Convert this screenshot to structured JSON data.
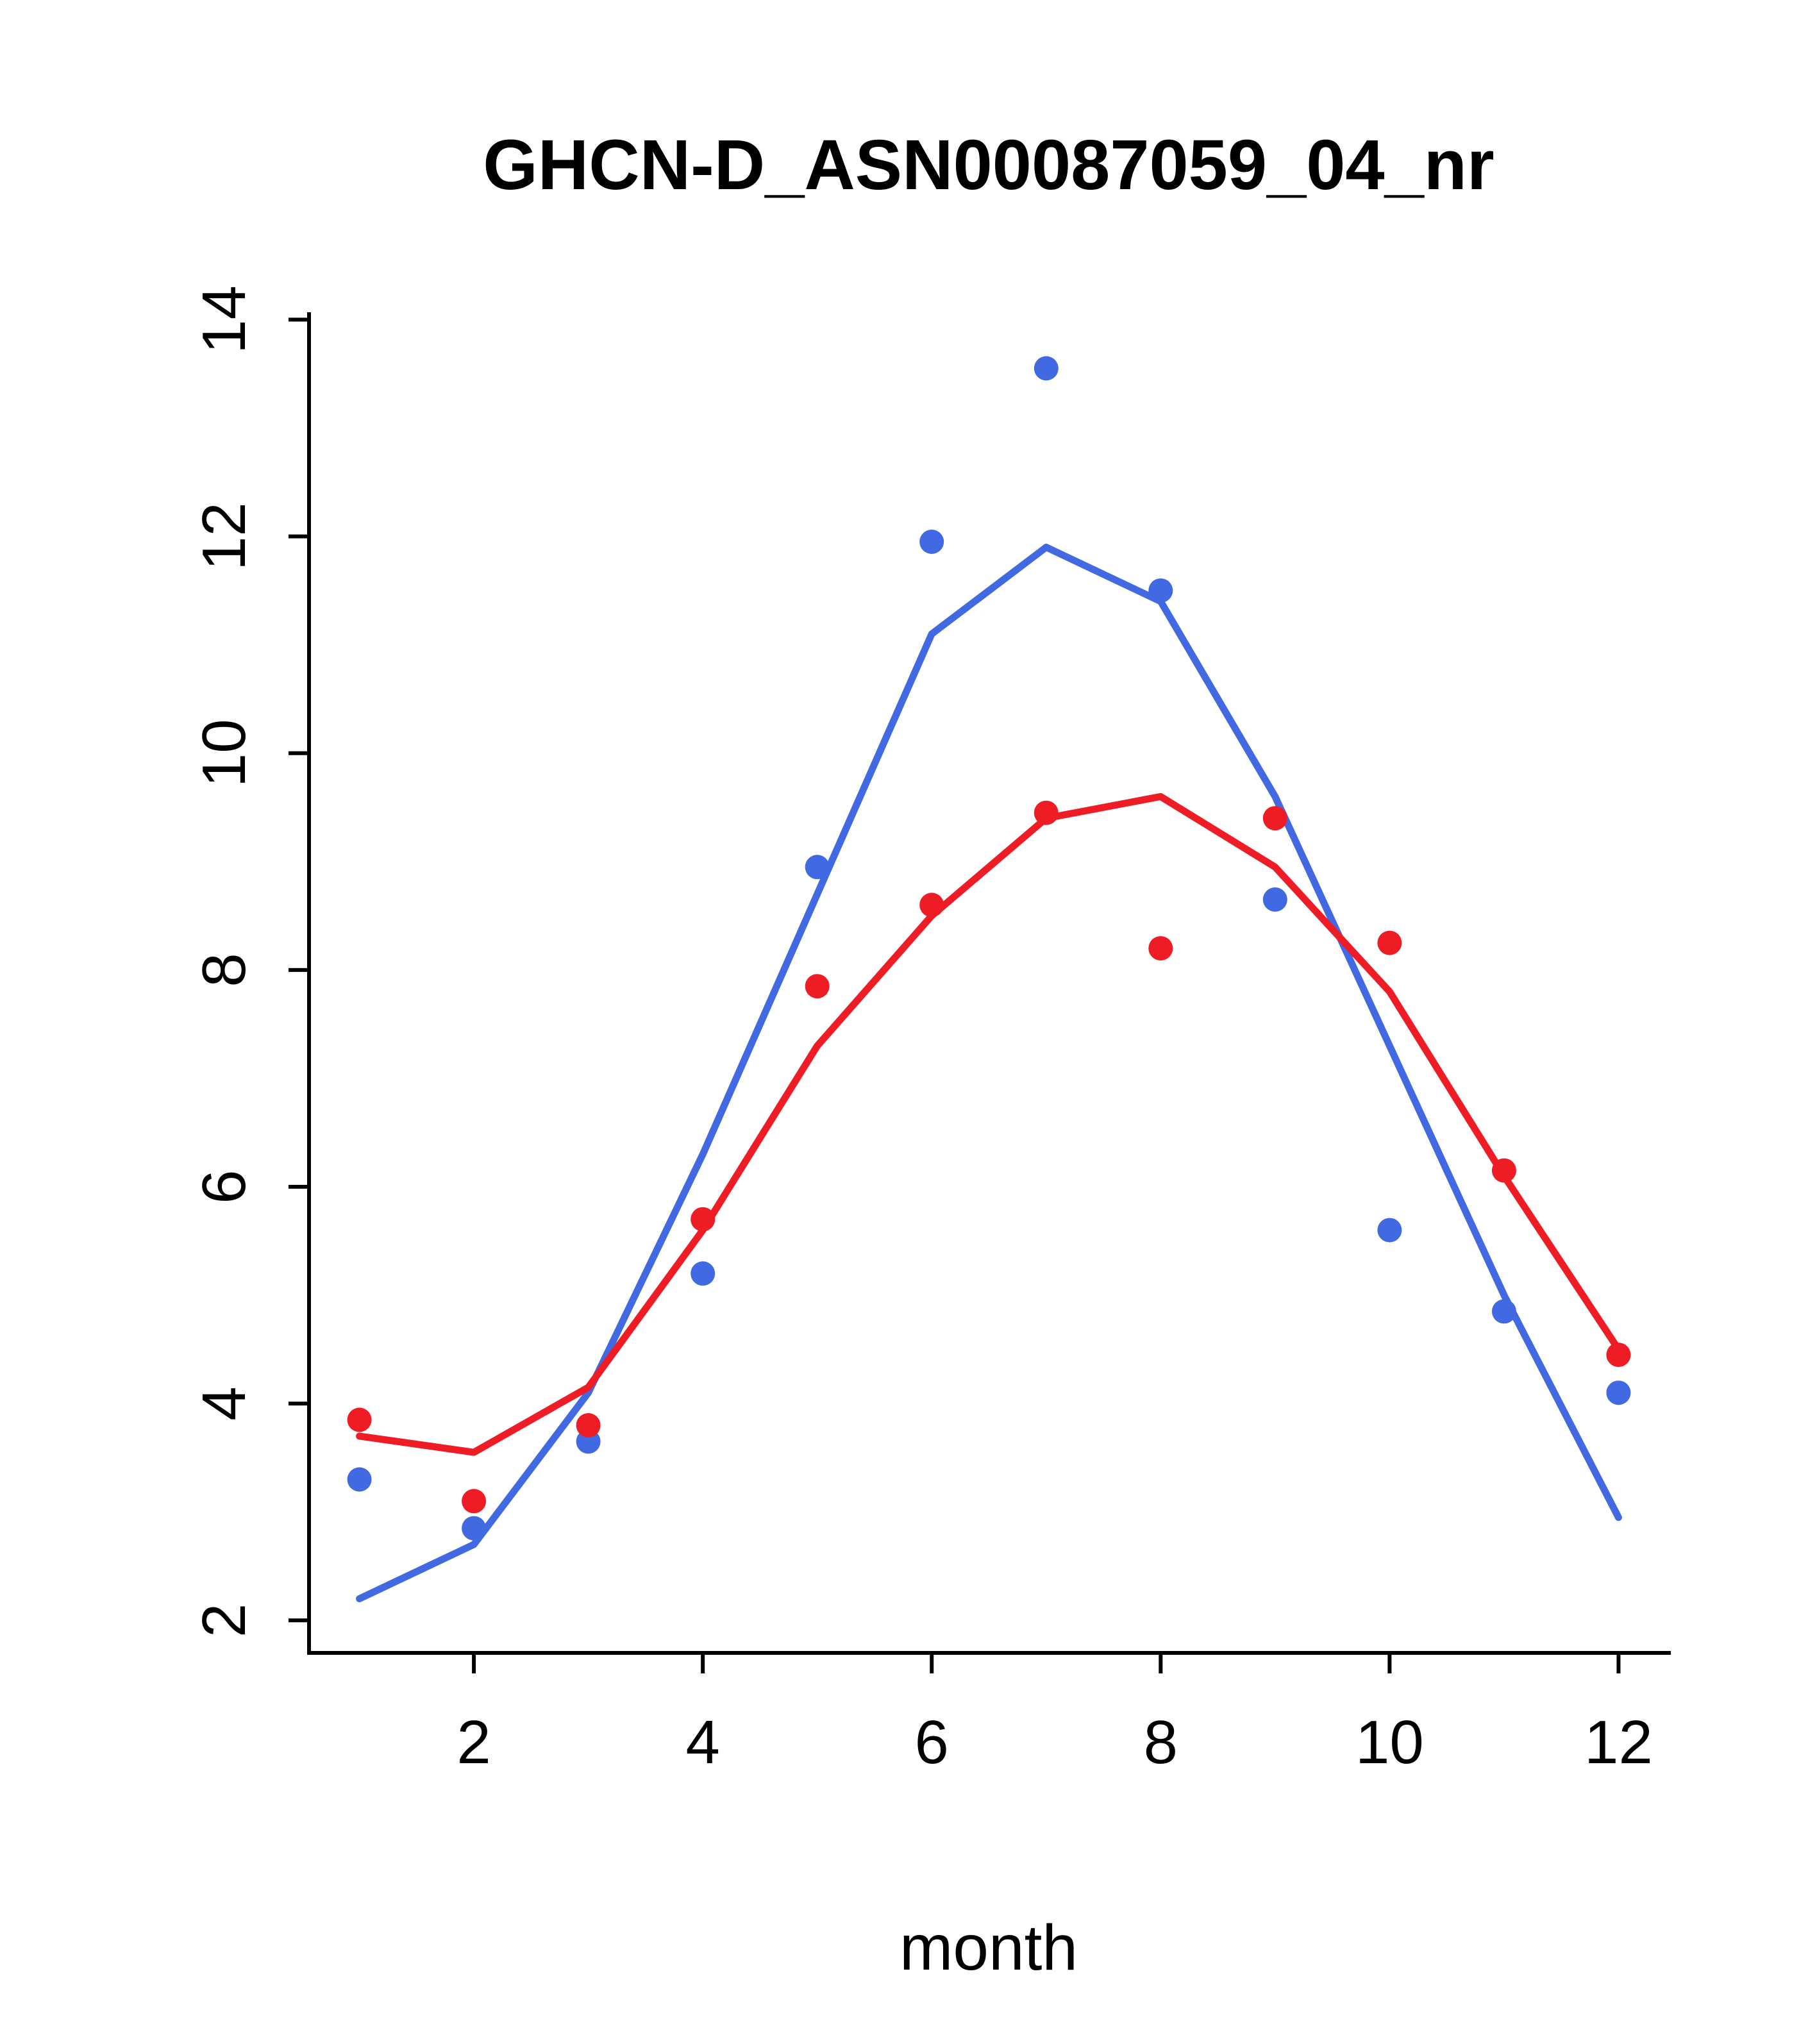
{
  "page": {
    "background": "#ffffff"
  },
  "chart_data": {
    "type": "scatter",
    "title": "GHCN-D_ASN00087059_04_nr",
    "xlabel": "month",
    "ylabel": "",
    "x": [
      1,
      2,
      3,
      4,
      5,
      6,
      7,
      8,
      9,
      10,
      11,
      12
    ],
    "xlim": [
      0.56,
      12.44
    ],
    "ylim": [
      1.7,
      14.05
    ],
    "xticks": [
      2,
      4,
      6,
      8,
      10,
      12
    ],
    "yticks": [
      2,
      4,
      6,
      8,
      10,
      12,
      14
    ],
    "grid": false,
    "legend": "none",
    "axis_color": "#000000",
    "colors": {
      "blue": "#4169e1",
      "red": "#ee1c25"
    },
    "series": [
      {
        "name": "blue-trend-line",
        "type": "line",
        "color": "#4169e1",
        "values": [
          2.2,
          2.7,
          4.1,
          6.3,
          8.7,
          11.1,
          11.9,
          11.4,
          9.6,
          7.3,
          5.0,
          2.95
        ]
      },
      {
        "name": "red-trend-line",
        "type": "line",
        "color": "#ee1c25",
        "values": [
          3.7,
          3.55,
          4.15,
          5.6,
          7.3,
          8.5,
          9.4,
          9.6,
          8.95,
          7.8,
          6.1,
          4.5
        ]
      },
      {
        "name": "blue-points",
        "type": "points",
        "color": "#4169e1",
        "values": [
          3.3,
          2.85,
          3.65,
          5.2,
          8.95,
          11.95,
          13.55,
          11.5,
          8.65,
          5.6,
          4.85,
          4.1
        ]
      },
      {
        "name": "red-points",
        "type": "points",
        "color": "#ee1c25",
        "values": [
          3.85,
          3.1,
          3.8,
          5.7,
          7.85,
          8.6,
          9.45,
          8.2,
          9.4,
          8.25,
          6.15,
          4.45
        ]
      }
    ]
  }
}
